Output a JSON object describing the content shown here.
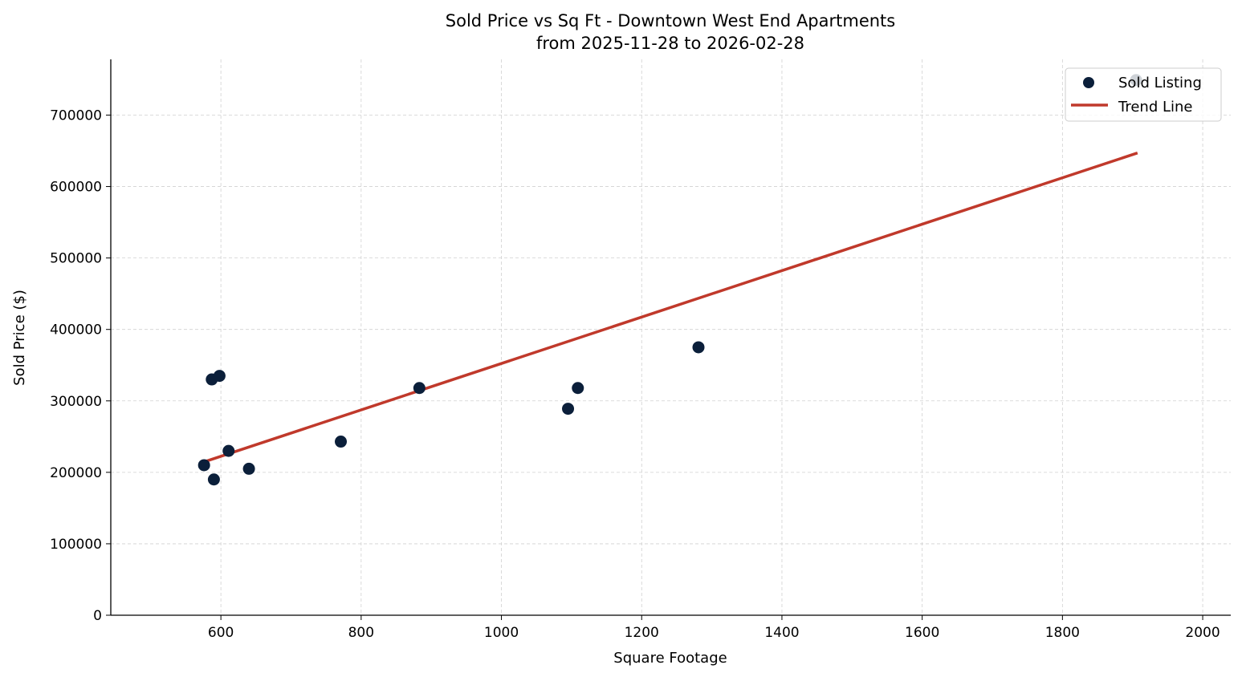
{
  "chart_data": {
    "type": "scatter",
    "title": "Sold Price vs Sq Ft - Downtown West End Apartments",
    "subtitle": "from 2025-11-28 to 2026-02-28",
    "xlabel": "Square Footage",
    "ylabel": "Sold Price ($)",
    "xlim": [
      443,
      2040
    ],
    "ylim": [
      0,
      778000
    ],
    "xticks": [
      600,
      800,
      1000,
      1200,
      1400,
      1600,
      1800,
      2000
    ],
    "yticks": [
      0,
      100000,
      200000,
      300000,
      400000,
      500000,
      600000,
      700000
    ],
    "grid": true,
    "legend_position": "top-right",
    "series": [
      {
        "name": "Sold Listing",
        "kind": "scatter",
        "color": "#0b1f3a",
        "points": [
          {
            "x": 576,
            "y": 210000
          },
          {
            "x": 590,
            "y": 190000
          },
          {
            "x": 587,
            "y": 330000
          },
          {
            "x": 598,
            "y": 335000
          },
          {
            "x": 611,
            "y": 230000
          },
          {
            "x": 640,
            "y": 205000
          },
          {
            "x": 771,
            "y": 243000
          },
          {
            "x": 883,
            "y": 318000
          },
          {
            "x": 1095,
            "y": 289000
          },
          {
            "x": 1109,
            "y": 318000
          },
          {
            "x": 1281,
            "y": 375000
          },
          {
            "x": 1905,
            "y": 749000
          }
        ]
      },
      {
        "name": "Trend Line",
        "kind": "line",
        "color": "#c0392b",
        "points": [
          {
            "x": 576,
            "y": 214600
          },
          {
            "x": 1907,
            "y": 647000
          }
        ]
      }
    ]
  }
}
